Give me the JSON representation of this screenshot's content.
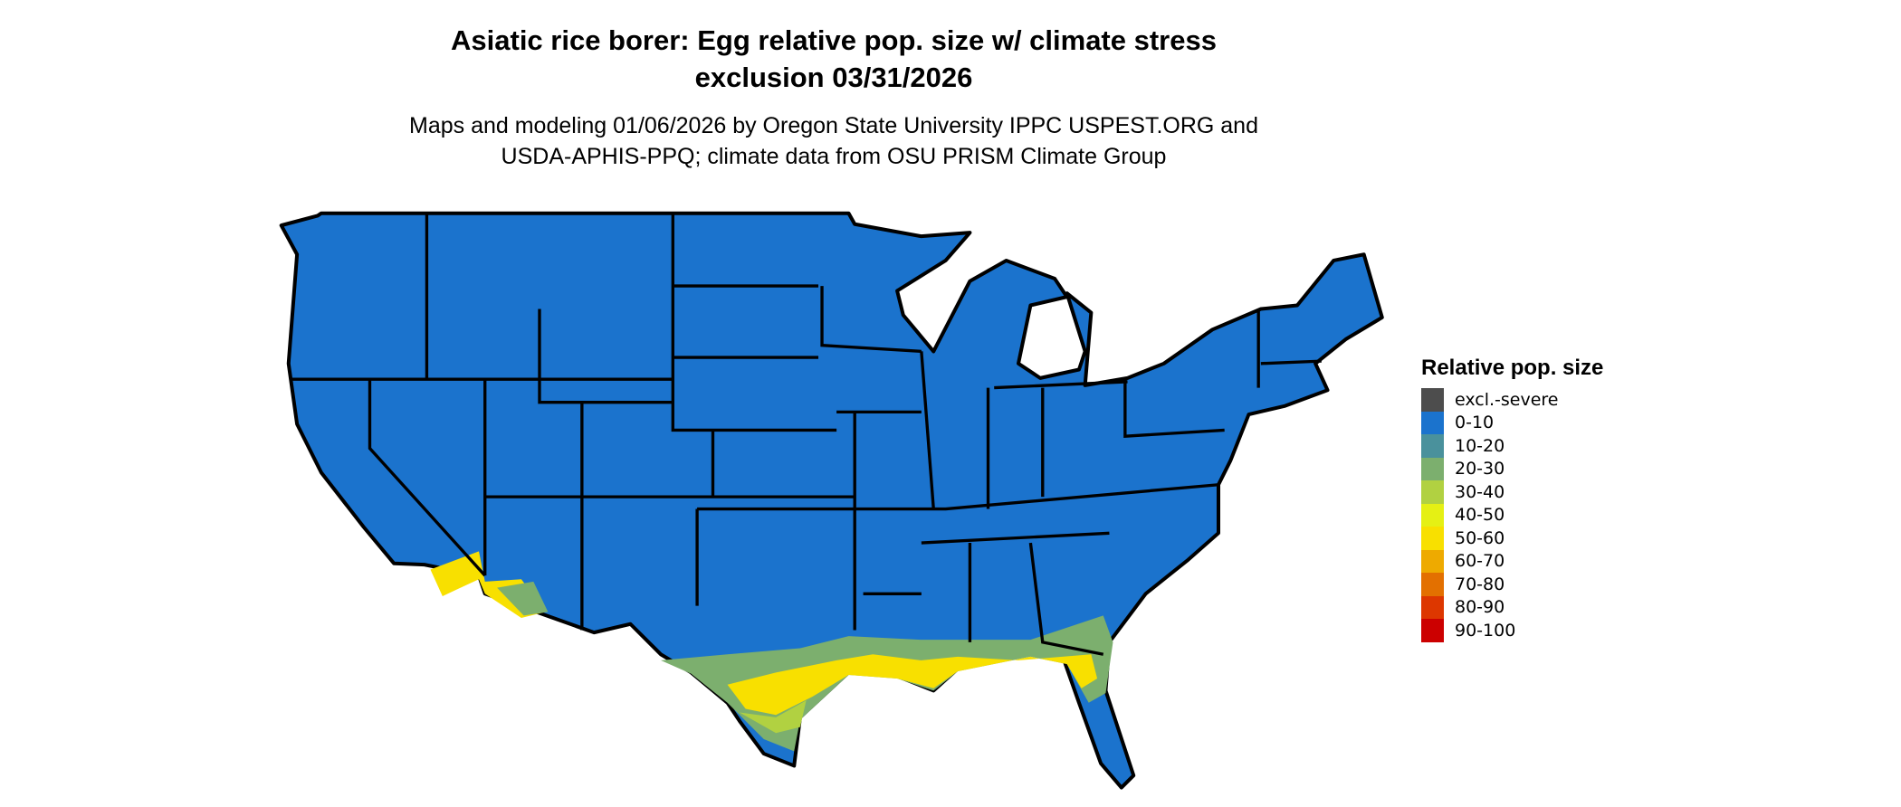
{
  "title_line1": "Asiatic rice borer: Egg relative pop. size w/ climate stress",
  "title_line2": "exclusion 03/31/2026",
  "subtitle_line1": "Maps and modeling 01/06/2026 by Oregon State University IPPC USPEST.ORG and",
  "subtitle_line2": "USDA-APHIS-PPQ; climate data from OSU PRISM Climate Group",
  "legend": {
    "title": "Relative pop. size",
    "items": [
      {
        "label": "excl.-severe",
        "color": "#4d4d4d"
      },
      {
        "label": "0-10",
        "color": "#1b73cd"
      },
      {
        "label": "10-20",
        "color": "#4a919c"
      },
      {
        "label": "20-30",
        "color": "#7caf6e"
      },
      {
        "label": "30-40",
        "color": "#b1d141"
      },
      {
        "label": "40-50",
        "color": "#e5f014"
      },
      {
        "label": "50-60",
        "color": "#f8e000"
      },
      {
        "label": "60-70",
        "color": "#eeaa00"
      },
      {
        "label": "70-80",
        "color": "#e37000"
      },
      {
        "label": "80-90",
        "color": "#dd3700"
      },
      {
        "label": "90-100",
        "color": "#cc0000"
      }
    ]
  }
}
